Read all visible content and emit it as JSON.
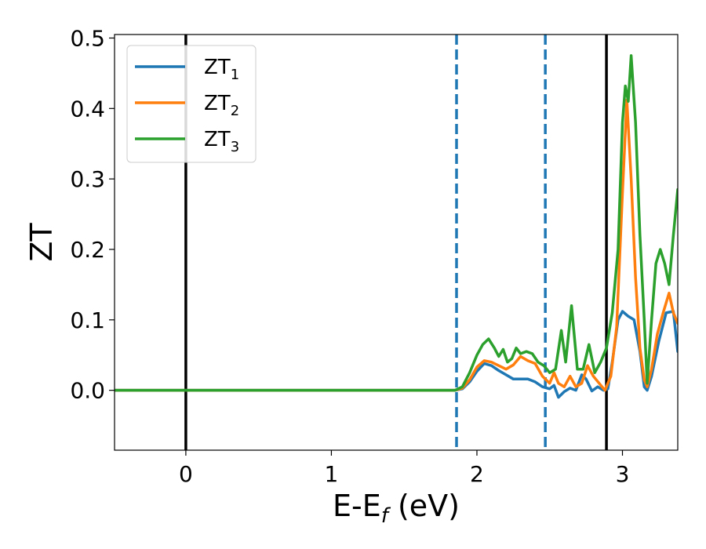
{
  "chart_data": {
    "type": "line",
    "xlabel": {
      "main": "E-E",
      "sub": "f",
      "suffix": " (eV)"
    },
    "ylabel": "ZT",
    "xlim": [
      -0.49,
      3.38
    ],
    "ylim": [
      -0.085,
      0.505
    ],
    "xticks": [
      0,
      1,
      2,
      3
    ],
    "xtick_labels": [
      "0",
      "1",
      "2",
      "3"
    ],
    "yticks": [
      0.0,
      0.1,
      0.2,
      0.3,
      0.4,
      0.5
    ],
    "ytick_labels": [
      "0.0",
      "0.1",
      "0.2",
      "0.3",
      "0.4",
      "0.5"
    ],
    "grid": false,
    "legend_position": "top-left",
    "vlines": [
      {
        "x": 0.0,
        "style": "solid",
        "color": "#000000"
      },
      {
        "x": 1.86,
        "style": "dashed",
        "color": "#1f77b4"
      },
      {
        "x": 2.47,
        "style": "dashed",
        "color": "#1f77b4"
      },
      {
        "x": 2.89,
        "style": "solid",
        "color": "#000000"
      }
    ],
    "series": [
      {
        "name": "ZT",
        "name_sub": "1",
        "color": "#1f77b4",
        "x": [
          -0.49,
          1.85,
          1.9,
          1.95,
          2.0,
          2.05,
          2.1,
          2.15,
          2.2,
          2.25,
          2.3,
          2.35,
          2.4,
          2.45,
          2.5,
          2.53,
          2.56,
          2.6,
          2.64,
          2.68,
          2.72,
          2.75,
          2.79,
          2.83,
          2.87,
          2.9,
          2.93,
          2.97,
          3.0,
          3.04,
          3.08,
          3.12,
          3.15,
          3.17,
          3.2,
          3.25,
          3.3,
          3.35,
          3.38
        ],
        "y": [
          0.0,
          0.0,
          0.002,
          0.012,
          0.027,
          0.038,
          0.035,
          0.028,
          0.022,
          0.016,
          0.016,
          0.016,
          0.012,
          0.005,
          0.002,
          0.007,
          -0.01,
          -0.002,
          0.003,
          0.0,
          0.022,
          0.016,
          -0.001,
          0.005,
          0.0,
          0.002,
          0.04,
          0.1,
          0.112,
          0.105,
          0.1,
          0.055,
          0.005,
          0.0,
          0.02,
          0.07,
          0.11,
          0.112,
          0.055
        ]
      },
      {
        "name": "ZT",
        "name_sub": "2",
        "color": "#ff7f0e",
        "x": [
          -0.49,
          1.85,
          1.9,
          1.95,
          2.0,
          2.05,
          2.1,
          2.15,
          2.2,
          2.25,
          2.3,
          2.35,
          2.4,
          2.45,
          2.5,
          2.53,
          2.56,
          2.6,
          2.64,
          2.68,
          2.72,
          2.76,
          2.8,
          2.84,
          2.88,
          2.92,
          2.96,
          3.0,
          3.03,
          3.06,
          3.09,
          3.12,
          3.15,
          3.17,
          3.2,
          3.24,
          3.28,
          3.32,
          3.35,
          3.38
        ],
        "y": [
          0.0,
          0.0,
          0.003,
          0.015,
          0.033,
          0.042,
          0.04,
          0.035,
          0.03,
          0.036,
          0.048,
          0.042,
          0.038,
          0.02,
          0.01,
          0.025,
          0.01,
          0.005,
          0.02,
          0.005,
          0.01,
          0.035,
          0.02,
          0.01,
          0.0,
          0.02,
          0.09,
          0.28,
          0.412,
          0.3,
          0.16,
          0.06,
          0.015,
          0.005,
          0.03,
          0.08,
          0.11,
          0.138,
          0.11,
          0.095
        ]
      },
      {
        "name": "ZT",
        "name_sub": "3",
        "color": "#2ca02c",
        "x": [
          -0.49,
          1.85,
          1.9,
          1.95,
          2.0,
          2.04,
          2.08,
          2.12,
          2.15,
          2.18,
          2.21,
          2.24,
          2.27,
          2.3,
          2.34,
          2.38,
          2.42,
          2.46,
          2.5,
          2.54,
          2.58,
          2.61,
          2.65,
          2.69,
          2.73,
          2.77,
          2.81,
          2.85,
          2.89,
          2.93,
          2.97,
          3.0,
          3.02,
          3.04,
          3.06,
          3.09,
          3.12,
          3.15,
          3.17,
          3.2,
          3.23,
          3.26,
          3.29,
          3.32,
          3.35,
          3.38
        ],
        "y": [
          0.0,
          0.0,
          0.005,
          0.025,
          0.05,
          0.065,
          0.073,
          0.06,
          0.048,
          0.058,
          0.04,
          0.045,
          0.06,
          0.052,
          0.055,
          0.052,
          0.04,
          0.035,
          0.025,
          0.03,
          0.085,
          0.04,
          0.12,
          0.03,
          0.03,
          0.065,
          0.025,
          0.04,
          0.06,
          0.11,
          0.2,
          0.38,
          0.432,
          0.41,
          0.475,
          0.38,
          0.22,
          0.1,
          0.01,
          0.1,
          0.18,
          0.2,
          0.18,
          0.15,
          0.22,
          0.285
        ]
      }
    ]
  }
}
